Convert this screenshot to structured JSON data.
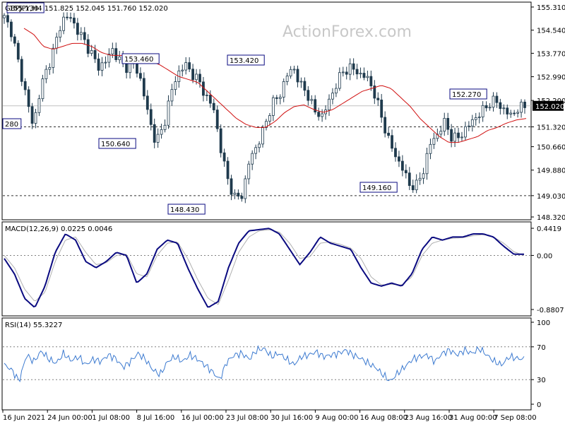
{
  "colors": {
    "candle": "#1f3a4d",
    "ma": "#d01010",
    "macd": "#0a0a80",
    "signal": "#b0b0b0",
    "rsi": "#3c7ad0",
    "annotation_border": "#0a0a80",
    "levels": "#303030"
  },
  "watermark": "ActionForex.com",
  "chart_data": [
    {
      "type": "candlestick",
      "title": "GBPJPY,H4",
      "ohlc_label": "151.825 152.045 151.760 152.020",
      "yticks": [
        "155.310",
        "154.540",
        "153.770",
        "152.990",
        "152.200",
        "151.320",
        "150.660",
        "149.880",
        "149.030",
        "148.320"
      ],
      "ylim": [
        148.25,
        155.45
      ],
      "x": [
        "16 Jun 2021",
        "24 Jun 00:00",
        "1 Jul 08:00",
        "8 Jul 16:00",
        "16 Jul 00:00",
        "23 Jul 08:00",
        "30 Jul 16:00",
        "9 Aug 00:00",
        "16 Aug 08:00",
        "23 Aug 16:00",
        "31 Aug 00:00",
        "7 Sep 08:00"
      ],
      "close_path": [
        154.95,
        154.5,
        153.4,
        152.4,
        151.3,
        152.6,
        153.3,
        154.0,
        154.9,
        155.0,
        154.6,
        154.2,
        153.8,
        153.3,
        153.5,
        153.9,
        153.5,
        153.3,
        153.4,
        152.8,
        151.6,
        150.8,
        151.3,
        152.4,
        153.1,
        153.4,
        153.1,
        152.8,
        152.3,
        151.9,
        150.5,
        149.5,
        148.9,
        149.1,
        150.3,
        150.7,
        151.3,
        152.1,
        152.3,
        153.0,
        153.3,
        152.7,
        152.4,
        151.8,
        151.7,
        152.2,
        152.8,
        153.2,
        153.3,
        153.1,
        153.0,
        152.6,
        151.8,
        151.0,
        150.4,
        150.0,
        149.4,
        149.35,
        149.9,
        150.8,
        151.1,
        151.5,
        150.9,
        151.0,
        151.3,
        151.6,
        151.8,
        152.1,
        152.2,
        151.9,
        151.7,
        151.9,
        152.02
      ],
      "ma_path": [
        154.6,
        154.4,
        154.0,
        153.9,
        154.0,
        154.1,
        154.1,
        154.0,
        153.8,
        153.7,
        153.7,
        153.65,
        153.6,
        153.5,
        153.4,
        153.2,
        153.0,
        152.9,
        152.8,
        152.5,
        152.2,
        151.9,
        151.6,
        151.4,
        151.3,
        151.3,
        151.5,
        151.8,
        152.0,
        152.05,
        151.9,
        151.8,
        151.9,
        152.1,
        152.3,
        152.5,
        152.6,
        152.7,
        152.6,
        152.3,
        152.0,
        151.6,
        151.3,
        151.0,
        150.8,
        150.8,
        150.9,
        151.0,
        151.2,
        151.3,
        151.45,
        151.55,
        151.6
      ],
      "levels": [
        151.32,
        149.03
      ],
      "current": "152.020",
      "annotations": [
        "155.130",
        "280",
        "153.460",
        "150.640",
        "148.430",
        "153.420",
        "149.160",
        "152.270"
      ]
    },
    {
      "type": "line",
      "title": "MACD(12,26,9) 0.0225 0.0046",
      "ylim": [
        -0.95,
        0.5
      ],
      "yticks": [
        "0.4419",
        "0.00",
        "-0.8807"
      ],
      "macd": [
        -0.05,
        -0.3,
        -0.7,
        -0.85,
        -0.5,
        0.05,
        0.35,
        0.25,
        -0.1,
        -0.2,
        -0.1,
        0.05,
        0.0,
        -0.45,
        -0.3,
        0.1,
        0.25,
        0.2,
        -0.2,
        -0.55,
        -0.85,
        -0.75,
        -0.2,
        0.2,
        0.4,
        0.42,
        0.44,
        0.35,
        0.1,
        -0.15,
        0.05,
        0.3,
        0.2,
        0.15,
        0.1,
        -0.2,
        -0.45,
        -0.5,
        -0.45,
        -0.5,
        -0.3,
        0.1,
        0.3,
        0.25,
        0.3,
        0.3,
        0.35,
        0.35,
        0.3,
        0.15,
        0.02,
        0.02
      ],
      "signal": [
        0.0,
        -0.2,
        -0.55,
        -0.75,
        -0.6,
        -0.1,
        0.25,
        0.3,
        0.05,
        -0.15,
        -0.12,
        0.0,
        0.02,
        -0.3,
        -0.35,
        0.0,
        0.2,
        0.22,
        -0.05,
        -0.4,
        -0.7,
        -0.8,
        -0.4,
        0.05,
        0.3,
        0.4,
        0.42,
        0.38,
        0.2,
        -0.05,
        -0.02,
        0.2,
        0.22,
        0.18,
        0.12,
        -0.05,
        -0.35,
        -0.48,
        -0.47,
        -0.48,
        -0.35,
        0.0,
        0.2,
        0.25,
        0.28,
        0.29,
        0.32,
        0.34,
        0.3,
        0.2,
        0.06,
        0.0
      ]
    },
    {
      "type": "line",
      "title": "RSI(14) 55.3227",
      "ylim": [
        0,
        100
      ],
      "yticks": [
        "100",
        "70",
        "30",
        "0"
      ],
      "values": [
        48,
        42,
        28,
        60,
        52,
        65,
        55,
        50,
        62,
        53,
        58,
        48,
        55,
        52,
        60,
        56,
        45,
        52,
        62,
        55,
        42,
        36,
        52,
        58,
        52,
        60,
        55,
        48,
        40,
        30,
        52,
        60,
        62,
        55,
        66,
        68,
        58,
        62,
        55,
        48,
        58,
        60,
        64,
        58,
        60,
        62,
        66,
        60,
        56,
        50,
        45,
        36,
        28,
        38,
        46,
        55,
        58,
        60,
        52,
        62,
        66,
        60,
        66,
        62,
        68,
        60,
        52,
        48,
        58,
        56,
        55
      ]
    }
  ]
}
